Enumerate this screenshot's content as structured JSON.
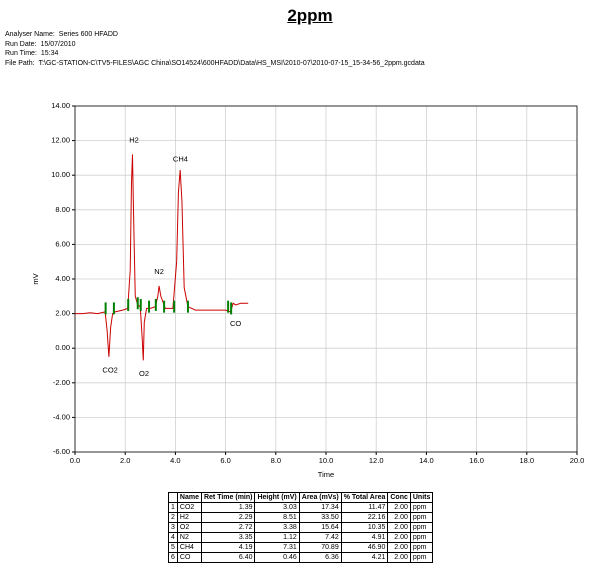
{
  "header": {
    "title": "2ppm",
    "info": [
      {
        "label": "Analyser Name:",
        "value": "Series 600 HFADD"
      },
      {
        "label": "Run Date:",
        "value": "15/07/2010"
      },
      {
        "label": "Run Time:",
        "value": "15:34"
      },
      {
        "label": "File Path:",
        "value": "T:\\GC-STATION-C\\TV5-FILES\\AGC  China\\SO14524\\600HFADD\\Data\\HS_MSI\\2010-07\\2010-07-15_15-34-56_2ppm.gcdata"
      }
    ]
  },
  "chart_data": {
    "type": "line",
    "x_label": "Time",
    "y_label": "mV",
    "xlim": [
      0,
      20
    ],
    "ylim": [
      -6,
      14
    ],
    "xticks": [
      {
        "value": 0,
        "label": "0.0"
      },
      {
        "value": 2,
        "label": "2.0"
      },
      {
        "value": 4,
        "label": "4.0"
      },
      {
        "value": 6,
        "label": "6.0"
      },
      {
        "value": 8,
        "label": "8.0"
      },
      {
        "value": 10,
        "label": "10.0"
      },
      {
        "value": 12,
        "label": "12.0"
      },
      {
        "value": 14,
        "label": "14.0"
      },
      {
        "value": 16,
        "label": "16.0"
      },
      {
        "value": 18,
        "label": "18.0"
      },
      {
        "value": 20,
        "label": "20.0"
      }
    ],
    "yticks": [
      {
        "value": -6,
        "label": "-6.00"
      },
      {
        "value": -4,
        "label": "-4.00"
      },
      {
        "value": -2,
        "label": "-2.00"
      },
      {
        "value": 0,
        "label": "0.00"
      },
      {
        "value": 2,
        "label": "2.00"
      },
      {
        "value": 4,
        "label": "4.00"
      },
      {
        "value": 6,
        "label": "6.00"
      },
      {
        "value": 8,
        "label": "8.00"
      },
      {
        "value": 10,
        "label": "10.00"
      },
      {
        "value": 12,
        "label": "12.00"
      },
      {
        "value": 14,
        "label": "14.00"
      }
    ],
    "grid": true,
    "series": [
      {
        "color": "#cc0000",
        "x": [
          0,
          0.3,
          0.6,
          0.9,
          1.2,
          1.28,
          1.35,
          1.42,
          1.5,
          1.6,
          1.9,
          2.1,
          2.2,
          2.25,
          2.29,
          2.33,
          2.4,
          2.5,
          2.6,
          2.68,
          2.72,
          2.76,
          2.85,
          3.0,
          3.2,
          3.3,
          3.35,
          3.42,
          3.6,
          3.9,
          4.05,
          4.12,
          4.19,
          4.26,
          4.35,
          4.5,
          4.8,
          5.5,
          6.0,
          6.2,
          6.3,
          6.4,
          6.6,
          6.9
        ],
        "values": [
          2.0,
          2.0,
          2.05,
          2.0,
          2.1,
          1.0,
          -0.5,
          1.2,
          2.0,
          2.1,
          2.2,
          2.3,
          4.5,
          9.5,
          11.2,
          8.0,
          3.0,
          2.5,
          2.4,
          0.5,
          -0.7,
          1.5,
          2.3,
          2.3,
          2.4,
          3.0,
          3.6,
          3.0,
          2.3,
          2.3,
          5.0,
          9.0,
          10.3,
          8.5,
          3.5,
          2.4,
          2.2,
          2.2,
          2.2,
          2.1,
          2.6,
          2.5,
          2.6,
          2.6
        ]
      }
    ],
    "markers": {
      "color": "#008000",
      "x": [
        1.22,
        1.55,
        2.12,
        2.5,
        2.62,
        2.95,
        3.22,
        3.55,
        3.95,
        4.5,
        6.1,
        6.22
      ],
      "values": [
        2.3,
        2.3,
        2.5,
        2.6,
        2.5,
        2.4,
        2.5,
        2.4,
        2.4,
        2.4,
        2.4,
        2.3
      ]
    },
    "annotations": [
      {
        "text": "H2",
        "x": 2.35,
        "y": 12.0
      },
      {
        "text": "CH4",
        "x": 4.2,
        "y": 10.9
      },
      {
        "text": "N2",
        "x": 3.35,
        "y": 4.4
      },
      {
        "text": "CO2",
        "x": 1.4,
        "y": -1.3
      },
      {
        "text": "O2",
        "x": 2.75,
        "y": -1.5
      },
      {
        "text": "CO",
        "x": 6.4,
        "y": 1.4
      }
    ]
  },
  "table": {
    "columns": [
      "",
      "Name",
      "Ret Time (min)",
      "Height (mV)",
      "Area (mVs)",
      "% Total Area",
      "Conc",
      "Units"
    ],
    "rows": [
      [
        "1",
        "CO2",
        "1.39",
        "3.03",
        "17.34",
        "11.47",
        "2.00",
        "ppm"
      ],
      [
        "2",
        "H2",
        "2.29",
        "8.51",
        "33.50",
        "22.16",
        "2.00",
        "ppm"
      ],
      [
        "3",
        "O2",
        "2.72",
        "3.38",
        "15.64",
        "10.35",
        "2.00",
        "ppm"
      ],
      [
        "4",
        "N2",
        "3.35",
        "1.12",
        "7.42",
        "4.91",
        "2.00",
        "ppm"
      ],
      [
        "5",
        "CH4",
        "4.19",
        "7.31",
        "70.89",
        "46.90",
        "2.00",
        "ppm"
      ],
      [
        "6",
        "CO",
        "6.40",
        "0.46",
        "6.36",
        "4.21",
        "2.00",
        "ppm"
      ]
    ]
  }
}
